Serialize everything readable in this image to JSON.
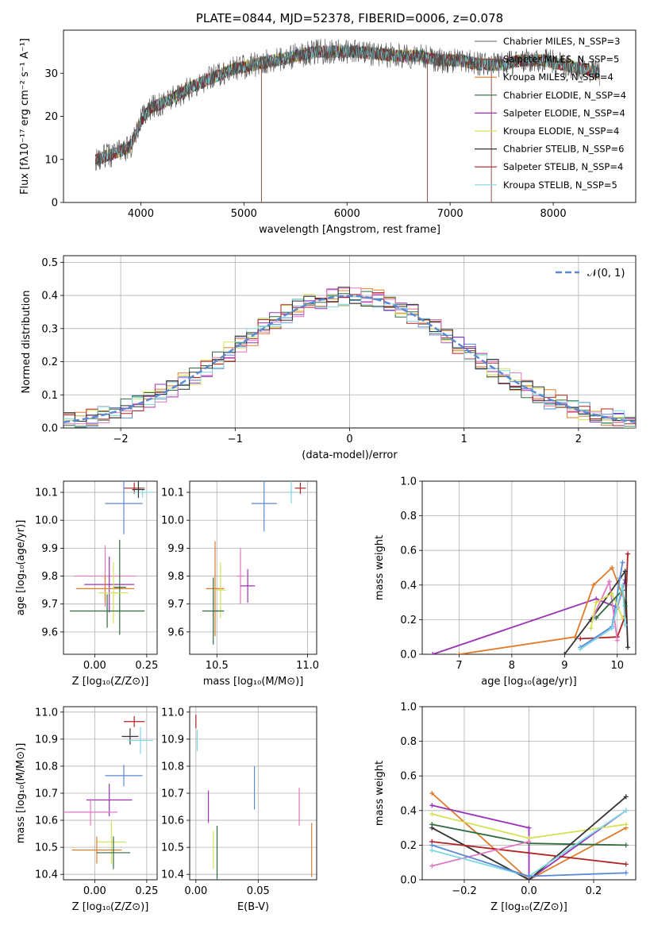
{
  "chart_data": [
    {
      "id": "spectrum",
      "type": "line",
      "title": "PLATE=0844, MJD=52378, FIBERID=0006, z=0.078",
      "xlabel": "wavelength [Angstrom, rest frame]",
      "ylabel": "Flux [fλ10⁻¹⁷ erg cm⁻² s⁻¹ A⁻¹]",
      "xlim": [
        3250,
        8800
      ],
      "ylim": [
        0,
        40
      ],
      "xticks": [
        4000,
        5000,
        6000,
        7000,
        8000
      ],
      "yticks": [
        0,
        10,
        20,
        30
      ],
      "grid": false,
      "legend_position": "right",
      "legend": [
        {
          "name": "Chabrier MILES, N_SSP=3",
          "color": "#7f7f7f"
        },
        {
          "name": "Salpeter MILES, N_SSP=5",
          "color": "#8c564b"
        },
        {
          "name": "Kroupa MILES, N_SSP=4",
          "color": "#e07b2b"
        },
        {
          "name": "Chabrier ELODIE, N_SSP=4",
          "color": "#2f6b3d"
        },
        {
          "name": "Salpeter ELODIE, N_SSP=4",
          "color": "#9b30b8"
        },
        {
          "name": "Kroupa ELODIE, N_SSP=4",
          "color": "#d4e157"
        },
        {
          "name": "Chabrier STELIB, N_SSP=6",
          "color": "#333333"
        },
        {
          "name": "Salpeter STELIB, N_SSP=4",
          "color": "#b22222"
        },
        {
          "name": "Kroupa STELIB, N_SSP=5",
          "color": "#7fd8e0"
        }
      ],
      "data_continuum": {
        "x": [
          3560,
          3700,
          3900,
          4000,
          4100,
          4300,
          4500,
          4700,
          4900,
          5100,
          5300,
          5500,
          5700,
          5900,
          6100,
          6300,
          6500,
          6700,
          6900,
          7100,
          7300,
          7500,
          7700,
          7900,
          8100,
          8300,
          8450
        ],
        "y": [
          10,
          11,
          13,
          19,
          22,
          24,
          27,
          29,
          31,
          32,
          33,
          34,
          35,
          35,
          35,
          34.5,
          34,
          34,
          33,
          33,
          32,
          32,
          33,
          33,
          32,
          31,
          30
        ]
      },
      "data_line_color": "#4d4d4d"
    },
    {
      "id": "residuals",
      "type": "step",
      "xlabel": "(data-model)/error",
      "ylabel": "Normed distribution",
      "xlim": [
        -2.5,
        2.5
      ],
      "ylim": [
        0,
        0.52
      ],
      "xticks": [
        -2,
        -1,
        0,
        1,
        2
      ],
      "yticks": [
        0.0,
        0.1,
        0.2,
        0.3,
        0.4,
        0.5
      ],
      "grid": true,
      "legend_position": "top-right",
      "legend": [
        {
          "name": "𝒩(0, 1)",
          "color": "#5a8ad6",
          "style": "dashed"
        }
      ],
      "normal": {
        "mean": 0,
        "sigma": 1
      }
    },
    {
      "id": "age-vs-Z",
      "type": "scatter",
      "xlabel": "Z [log₁₀(Z/Z⊙)]",
      "ylabel": "age  [log₁₀(age/yr)]",
      "xlim": [
        -0.15,
        0.3
      ],
      "ylim": [
        9.52,
        10.14
      ],
      "xticks": [
        0.0,
        0.25
      ],
      "xticklabels": [
        "0.00",
        "0.25"
      ],
      "yticks": [
        9.6,
        9.7,
        9.8,
        9.9,
        10.0,
        10.1
      ],
      "grid": true,
      "points": [
        {
          "x": 0.19,
          "y": 10.115,
          "xerr": 0.05,
          "yerr": 0.02,
          "color": "#b22222"
        },
        {
          "x": 0.23,
          "y": 10.1,
          "xerr": 0.05,
          "yerr": 0.02,
          "color": "#7fd8e0"
        },
        {
          "x": 0.21,
          "y": 10.11,
          "xerr": 0.03,
          "yerr": 0.03,
          "color": "#333333"
        },
        {
          "x": 0.14,
          "y": 10.06,
          "xerr": 0.09,
          "yerr": 0.11,
          "color": "#5a8ad6"
        },
        {
          "x": 0.05,
          "y": 9.8,
          "xerr": 0.15,
          "yerr": 0.11,
          "color": "#e377c2"
        },
        {
          "x": 0.07,
          "y": 9.77,
          "xerr": 0.12,
          "yerr": 0.1,
          "color": "#9b30b8"
        },
        {
          "x": 0.05,
          "y": 9.755,
          "xerr": 0.14,
          "yerr": 0.05,
          "color": "#e07b2b"
        },
        {
          "x": 0.12,
          "y": 9.76,
          "xerr": 0.03,
          "yerr": 0.17,
          "color": "#2f6b3d"
        },
        {
          "x": 0.09,
          "y": 9.74,
          "xerr": 0.07,
          "yerr": 0.11,
          "color": "#d4e157"
        },
        {
          "x": 0.06,
          "y": 9.675,
          "xerr": 0.18,
          "yerr": 0.06,
          "color": "#2f6b3d"
        }
      ]
    },
    {
      "id": "age-vs-mass",
      "type": "scatter",
      "xlabel": "mass [log₁₀(M/M⊙)]",
      "ylabel": "",
      "xlim": [
        10.35,
        11.05
      ],
      "ylim": [
        9.52,
        10.14
      ],
      "xticks": [
        10.5,
        11.0
      ],
      "xticklabels": [
        "10.5",
        "11.0"
      ],
      "yticks": [
        9.6,
        9.7,
        9.8,
        9.9,
        10.0,
        10.1
      ],
      "grid": true,
      "points": [
        {
          "x": 10.96,
          "y": 10.115,
          "xerr": 0.03,
          "yerr": 0.02,
          "color": "#b22222"
        },
        {
          "x": 10.91,
          "y": 10.1,
          "xerr": 0.02,
          "yerr": 0.04,
          "color": "#7fd8e0"
        },
        {
          "x": 10.76,
          "y": 10.06,
          "xerr": 0.07,
          "yerr": 0.1,
          "color": "#5a8ad6"
        },
        {
          "x": 10.63,
          "y": 9.8,
          "xerr": 0.02,
          "yerr": 0.1,
          "color": "#e377c2"
        },
        {
          "x": 10.67,
          "y": 9.765,
          "xerr": 0.04,
          "yerr": 0.06,
          "color": "#9b30b8"
        },
        {
          "x": 10.49,
          "y": 9.755,
          "xerr": 0.05,
          "yerr": 0.17,
          "color": "#e07b2b"
        },
        {
          "x": 10.52,
          "y": 9.75,
          "xerr": 0.03,
          "yerr": 0.1,
          "color": "#d4e157"
        },
        {
          "x": 10.48,
          "y": 9.675,
          "xerr": 0.06,
          "yerr": 0.12,
          "color": "#2f6b3d"
        }
      ]
    },
    {
      "id": "weight-vs-age",
      "type": "line",
      "xlabel": "age  [log₁₀(age/yr)]",
      "ylabel": "mass weight",
      "xlim": [
        6.3,
        10.35
      ],
      "ylim": [
        0,
        1
      ],
      "xticks": [
        7,
        8,
        9,
        10
      ],
      "yticks": [
        0.0,
        0.2,
        0.4,
        0.6,
        0.8,
        1.0
      ],
      "grid": true,
      "series": [
        {
          "color": "#9b30b8",
          "x": [
            6.5,
            9.6,
            10.0,
            10.15
          ],
          "y": [
            0.0,
            0.32,
            0.27,
            0.43
          ]
        },
        {
          "color": "#e07b2b",
          "x": [
            7.0,
            9.2,
            9.55,
            9.9,
            10.15
          ],
          "y": [
            0.0,
            0.1,
            0.4,
            0.5,
            0.3
          ]
        },
        {
          "color": "#b22222",
          "x": [
            9.3,
            10.0,
            10.15,
            10.2
          ],
          "y": [
            0.09,
            0.1,
            0.22,
            0.58
          ]
        },
        {
          "color": "#333333",
          "x": [
            9.0,
            9.5,
            10.15,
            10.2
          ],
          "y": [
            0.0,
            0.2,
            0.48,
            0.04
          ]
        },
        {
          "color": "#5a8ad6",
          "x": [
            9.3,
            9.9,
            10.05,
            10.1
          ],
          "y": [
            0.04,
            0.16,
            0.44,
            0.53
          ]
        },
        {
          "color": "#e377c2",
          "x": [
            9.55,
            9.85,
            10.0
          ],
          "y": [
            0.22,
            0.42,
            0.08
          ]
        },
        {
          "color": "#d4e157",
          "x": [
            9.5,
            9.6,
            9.9,
            10.1
          ],
          "y": [
            0.15,
            0.3,
            0.35,
            0.21
          ]
        },
        {
          "color": "#2f6b3d",
          "x": [
            9.6,
            10.1,
            10.15
          ],
          "y": [
            0.21,
            0.37,
            0.28
          ]
        },
        {
          "color": "#7fd8e0",
          "x": [
            9.3,
            9.9,
            10.1,
            10.15
          ],
          "y": [
            0.03,
            0.15,
            0.4,
            0.17
          ]
        }
      ]
    },
    {
      "id": "mass-vs-Z",
      "type": "scatter",
      "xlabel": "Z [log₁₀(Z/Z⊙)]",
      "ylabel": "mass [log₁₀(M/M⊙)]",
      "xlim": [
        -0.15,
        0.3
      ],
      "ylim": [
        10.38,
        11.02
      ],
      "xticks": [
        0.0,
        0.25
      ],
      "xticklabels": [
        "0.00",
        "0.25"
      ],
      "yticks": [
        10.4,
        10.5,
        10.6,
        10.7,
        10.8,
        10.9,
        11.0
      ],
      "grid": true,
      "points": [
        {
          "x": 0.19,
          "y": 10.965,
          "xerr": 0.05,
          "yerr": 0.02,
          "color": "#b22222"
        },
        {
          "x": 0.17,
          "y": 10.91,
          "xerr": 0.04,
          "yerr": 0.03,
          "color": "#333333"
        },
        {
          "x": 0.22,
          "y": 10.895,
          "xerr": 0.06,
          "yerr": 0.05,
          "color": "#7fd8e0"
        },
        {
          "x": 0.14,
          "y": 10.765,
          "xerr": 0.09,
          "yerr": 0.04,
          "color": "#5a8ad6"
        },
        {
          "x": 0.07,
          "y": 10.675,
          "xerr": 0.11,
          "yerr": 0.06,
          "color": "#9b30b8"
        },
        {
          "x": -0.02,
          "y": 10.63,
          "xerr": 0.13,
          "yerr": 0.05,
          "color": "#e377c2"
        },
        {
          "x": 0.08,
          "y": 10.52,
          "xerr": 0.07,
          "yerr": 0.08,
          "color": "#d4e157"
        },
        {
          "x": 0.01,
          "y": 10.49,
          "xerr": 0.12,
          "yerr": 0.05,
          "color": "#e07b2b"
        },
        {
          "x": 0.09,
          "y": 10.48,
          "xerr": 0.08,
          "yerr": 0.06,
          "color": "#2f6b3d"
        }
      ]
    },
    {
      "id": "mass-vs-EBV",
      "type": "scatter",
      "xlabel": "E(B-V)",
      "ylabel": "",
      "xlim": [
        -0.005,
        0.097
      ],
      "ylim": [
        10.38,
        11.02
      ],
      "xticks": [
        0.0,
        0.05
      ],
      "xticklabels": [
        "0.00",
        "0.05"
      ],
      "yticks": [
        10.4,
        10.5,
        10.6,
        10.7,
        10.8,
        10.9,
        11.0
      ],
      "grid": true,
      "points": [
        {
          "x": 0.0,
          "y": 10.965,
          "xerr": 0,
          "yerr": 0.025,
          "color": "#b22222"
        },
        {
          "x": 0.001,
          "y": 10.895,
          "xerr": 0,
          "yerr": 0.04,
          "color": "#7fd8e0"
        },
        {
          "x": 0.047,
          "y": 10.72,
          "xerr": 0,
          "yerr": 0.08,
          "color": "#5a8ad6"
        },
        {
          "x": 0.01,
          "y": 10.65,
          "xerr": 0,
          "yerr": 0.06,
          "color": "#9b30b8"
        },
        {
          "x": 0.083,
          "y": 10.65,
          "xerr": 0,
          "yerr": 0.07,
          "color": "#e377c2"
        },
        {
          "x": 0.014,
          "y": 10.49,
          "xerr": 0,
          "yerr": 0.07,
          "color": "#d4e157"
        },
        {
          "x": 0.017,
          "y": 10.48,
          "xerr": 0,
          "yerr": 0.1,
          "color": "#2f6b3d"
        },
        {
          "x": 0.093,
          "y": 10.49,
          "xerr": 0,
          "yerr": 0.1,
          "color": "#e07b2b"
        }
      ]
    },
    {
      "id": "weight-vs-Z",
      "type": "line",
      "xlabel": "Z [log₁₀(Z/Z⊙)]",
      "ylabel": "mass weight",
      "xlim": [
        -0.33,
        0.33
      ],
      "ylim": [
        0,
        1
      ],
      "xticks": [
        -0.2,
        0.0,
        0.2
      ],
      "xticklabels": [
        "−0.2",
        "0.0",
        "0.2"
      ],
      "yticks": [
        0.0,
        0.2,
        0.4,
        0.6,
        0.8,
        1.0
      ],
      "grid": true,
      "series": [
        {
          "color": "#e07b2b",
          "x": [
            -0.3,
            0.0,
            0.3
          ],
          "y": [
            0.5,
            0.0,
            0.3
          ]
        },
        {
          "color": "#9b30b8",
          "x": [
            -0.3,
            0.0,
            0.0,
            0.3
          ],
          "y": [
            0.43,
            0.3,
            0.0,
            0.4
          ]
        },
        {
          "color": "#d4e157",
          "x": [
            -0.3,
            0.0,
            0.3
          ],
          "y": [
            0.38,
            0.24,
            0.32
          ]
        },
        {
          "color": "#2f6b3d",
          "x": [
            -0.3,
            0.0,
            0.3
          ],
          "y": [
            0.32,
            0.21,
            0.2
          ]
        },
        {
          "color": "#333333",
          "x": [
            -0.3,
            0.0,
            0.3
          ],
          "y": [
            0.3,
            0.0,
            0.48
          ]
        },
        {
          "color": "#b22222",
          "x": [
            -0.3,
            0.3
          ],
          "y": [
            0.22,
            0.09
          ]
        },
        {
          "color": "#e377c2",
          "x": [
            -0.3,
            0.0
          ],
          "y": [
            0.08,
            0.22
          ]
        },
        {
          "color": "#7fd8e0",
          "x": [
            -0.3,
            0.0,
            0.3
          ],
          "y": [
            0.17,
            0.02,
            0.4
          ]
        },
        {
          "color": "#5a8ad6",
          "x": [
            -0.3,
            0.0,
            0.3
          ],
          "y": [
            0.2,
            0.02,
            0.04
          ]
        }
      ]
    }
  ]
}
